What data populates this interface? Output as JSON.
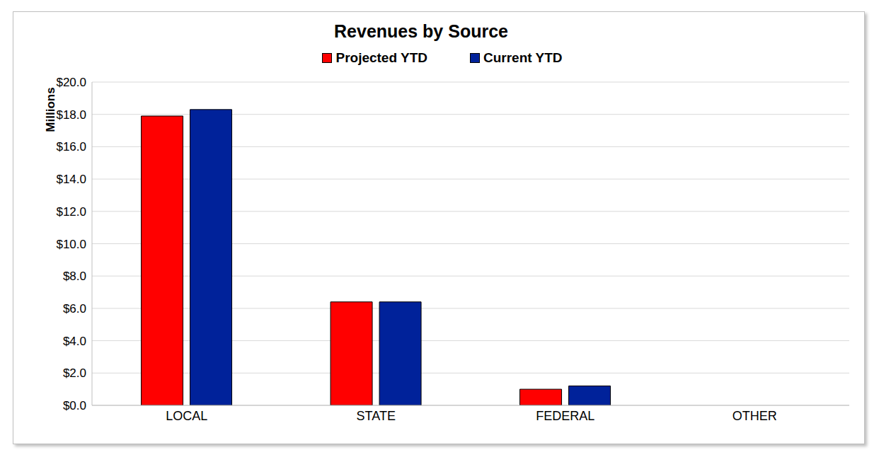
{
  "chart_data": {
    "type": "bar",
    "title": "Revenues by Source",
    "y_label": "Millions",
    "categories": [
      "LOCAL",
      "STATE",
      "FEDERAL",
      "OTHER"
    ],
    "series": [
      {
        "name": "Projected YTD",
        "color": "#ff0000",
        "values": [
          17.9,
          6.4,
          1.0,
          0
        ]
      },
      {
        "name": "Current YTD",
        "color": "#00229a",
        "values": [
          18.3,
          6.4,
          1.2,
          0
        ]
      }
    ],
    "ylim": [
      0,
      20
    ],
    "yticks": [
      {
        "value": 0,
        "label": "$0.0"
      },
      {
        "value": 2,
        "label": "$2.0"
      },
      {
        "value": 4,
        "label": "$4.0"
      },
      {
        "value": 6,
        "label": "$6.0"
      },
      {
        "value": 8,
        "label": "$8.0"
      },
      {
        "value": 10,
        "label": "$10.0"
      },
      {
        "value": 12,
        "label": "$12.0"
      },
      {
        "value": 14,
        "label": "$14.0"
      },
      {
        "value": 16,
        "label": "$16.0"
      },
      {
        "value": 18,
        "label": "$18.0"
      },
      {
        "value": 20,
        "label": "$20.0"
      }
    ],
    "grid": true,
    "legend": "top",
    "data_labels": false
  }
}
